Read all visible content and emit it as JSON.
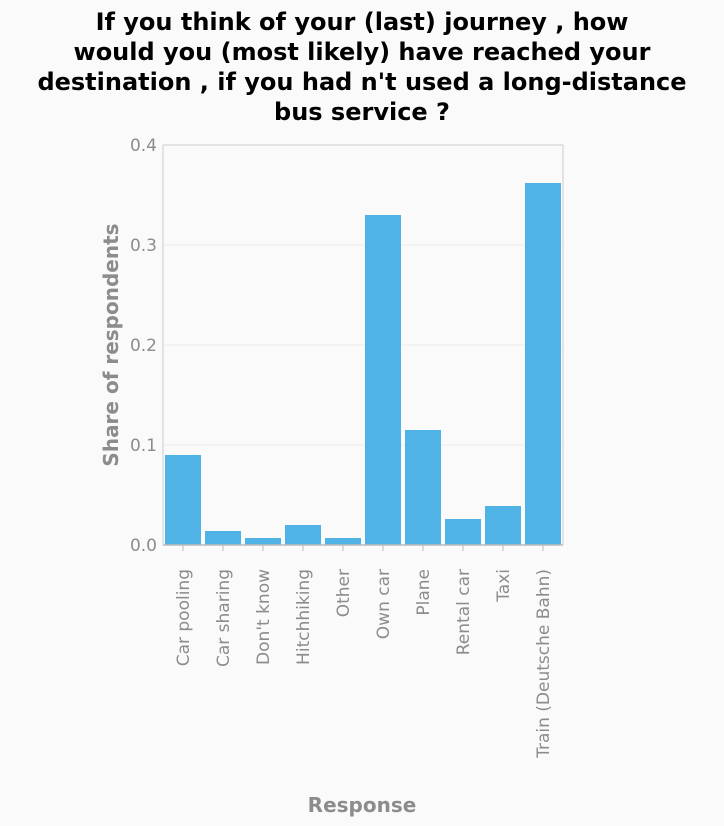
{
  "chart_data": {
    "type": "bar",
    "title_lines": [
      "If you think of your (last) journey , how",
      "would you (most likely) have reached your",
      "destination , if you had n't used a long-distance",
      "bus service ?"
    ],
    "xlabel": "Response",
    "ylabel": "Share of respondents",
    "categories": [
      "Car pooling",
      "Car sharing",
      "Don't know",
      "Hitchhiking",
      "Other",
      "Own car",
      "Plane",
      "Rental car",
      "Taxi",
      "Train (Deutsche Bahn)"
    ],
    "values": [
      0.09,
      0.014,
      0.007,
      0.02,
      0.007,
      0.33,
      0.115,
      0.026,
      0.039,
      0.362
    ],
    "ylim": [
      0,
      0.4
    ],
    "yticks": [
      0.0,
      0.1,
      0.2,
      0.3,
      0.4
    ],
    "ytick_labels": [
      "0.0",
      "0.1",
      "0.2",
      "0.3",
      "0.4"
    ],
    "grid": true,
    "legend": "none",
    "colors": {
      "bar": "#4fb3e6",
      "grid": "#ececec",
      "axis": "#cccccc",
      "background": "#fafafa"
    }
  }
}
